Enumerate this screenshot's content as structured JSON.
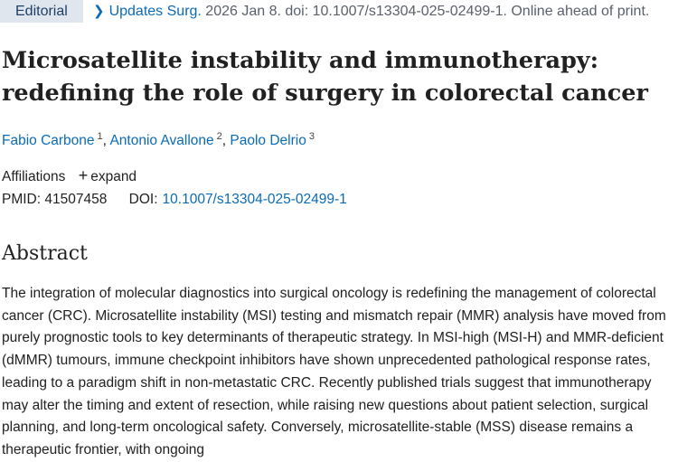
{
  "header": {
    "badge": "Editorial",
    "journal": "Updates Surg.",
    "citation": " 2026 Jan 8. doi: 10.1007/s13304-025-02499-1. Online ahead of print."
  },
  "article": {
    "title": "Microsatellite instability and immunotherapy: redefining the role of surgery in colorectal cancer",
    "authors": [
      {
        "name": "Fabio Carbone",
        "aff": "1"
      },
      {
        "name": "Antonio Avallone",
        "aff": "2"
      },
      {
        "name": "Paolo Delrio",
        "aff": "3"
      }
    ],
    "affiliations_label": "Affiliations",
    "expand_label": "expand",
    "pmid_label": "PMID:",
    "pmid": "41507458",
    "doi_label": "DOI:",
    "doi": "10.1007/s13304-025-02499-1"
  },
  "abstract": {
    "heading": "Abstract",
    "text": "The integration of molecular diagnostics into surgical oncology is redefining the management of colorectal cancer (CRC). Microsatellite instability (MSI) testing and mismatch repair (MMR) analysis have moved from purely prognostic tools to key determinants of therapeutic strategy. In MSI-high (MSI-H) and MMR-deficient (dMMR) tumours, immune checkpoint inhibitors have shown unprecedented pathological response rates, leading to a paradigm shift in non-metastatic CRC. Recently published trials suggest that immunotherapy may alter the timing and extent of resection, while raising new questions about patient selection, surgical planning, and long-term oncological safety. Conversely, microsatellite-stable (MSS) disease remains a therapeutic frontier, with ongoing"
  }
}
